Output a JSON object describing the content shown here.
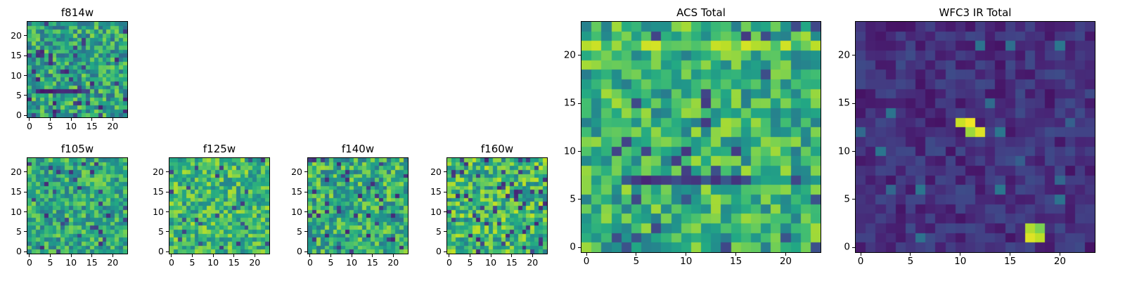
{
  "figure": {
    "background": "#ffffff",
    "axis_color": "#000000"
  },
  "colormap": {
    "name": "viridis",
    "stops": [
      "#440154",
      "#482475",
      "#414487",
      "#355f8d",
      "#2a788e",
      "#21918c",
      "#22a884",
      "#44bf70",
      "#7ad151",
      "#bddf26",
      "#fde725"
    ]
  },
  "chart_data": {
    "type": "heatmap",
    "grid": [
      24,
      24
    ],
    "xticks": [
      0,
      5,
      10,
      15,
      20
    ],
    "yticks": [
      0,
      5,
      10,
      15,
      20
    ],
    "x_range": [
      -0.5,
      23.5
    ],
    "y_range": [
      -0.5,
      23.5
    ],
    "panels": [
      {
        "id": "f814w",
        "title": "f814w",
        "seed": 814,
        "base": 0.58,
        "spread": 0.5,
        "dark_prob": 0.06,
        "dark_value": 0.08,
        "features": [
          {
            "type": "rect",
            "x0": 3,
            "y0": 6,
            "x1": 14,
            "y1": 6,
            "value": 0.15,
            "jitter": 0.2
          }
        ],
        "description": "noisy green-teal cutout with dark horizontal streak near y=6"
      },
      {
        "id": "f105w",
        "title": "f105w",
        "seed": 105,
        "base": 0.6,
        "spread": 0.45,
        "dark_prob": 0.05,
        "dark_value": 0.12,
        "features": [],
        "description": "noisy green cutout with scattered dark pixels"
      },
      {
        "id": "f125w",
        "title": "f125w",
        "seed": 125,
        "base": 0.66,
        "spread": 0.45,
        "dark_prob": 0.04,
        "dark_value": 0.15,
        "features": [],
        "description": "noisy yellow-green cutout"
      },
      {
        "id": "f140w",
        "title": "f140w",
        "seed": 140,
        "base": 0.62,
        "spread": 0.5,
        "dark_prob": 0.07,
        "dark_value": 0.1,
        "features": [],
        "description": "noisy green cutout with dark blue spots"
      },
      {
        "id": "f160w",
        "title": "f160w",
        "seed": 160,
        "base": 0.66,
        "spread": 0.5,
        "dark_prob": 0.07,
        "dark_value": 0.1,
        "features": [],
        "description": "noisy yellow-green cutout with dark blue spots"
      },
      {
        "id": "acs_total",
        "title": "ACS Total",
        "seed": 999,
        "base": 0.64,
        "spread": 0.45,
        "dark_prob": 0.04,
        "dark_value": 0.15,
        "features": [
          {
            "type": "rect",
            "x0": 0,
            "y0": 21,
            "x1": 23,
            "y1": 21,
            "value": 0.8,
            "jitter": 0.3
          },
          {
            "type": "rect",
            "x0": 4,
            "y0": 7,
            "x1": 16,
            "y1": 7,
            "value": 0.2,
            "jitter": 0.2
          }
        ],
        "description": "large noisy green-yellow mosaic, bright band near y=21, dark streak near y=7"
      },
      {
        "id": "wfc3_ir_total",
        "title": "WFC3 IR Total",
        "seed": 333,
        "base": 0.14,
        "spread": 0.18,
        "dark_prob": 0.0,
        "dark_value": 0.0,
        "bright_prob": 0.03,
        "bright_value": 0.3,
        "features": [
          {
            "type": "cells",
            "cells": [
              [
                10,
                13,
                0.92
              ],
              [
                11,
                13,
                0.98
              ],
              [
                11,
                12,
                0.85
              ],
              [
                12,
                12,
                0.95
              ]
            ]
          },
          {
            "type": "cells",
            "cells": [
              [
                17,
                1,
                0.95
              ],
              [
                18,
                1,
                0.9
              ],
              [
                17,
                2,
                0.88
              ],
              [
                18,
                2,
                0.8
              ]
            ]
          }
        ],
        "description": "dark indigo mosaic with bright yellow source near (11,12.5) and compact bright source near (17.5,1.5)"
      }
    ]
  }
}
